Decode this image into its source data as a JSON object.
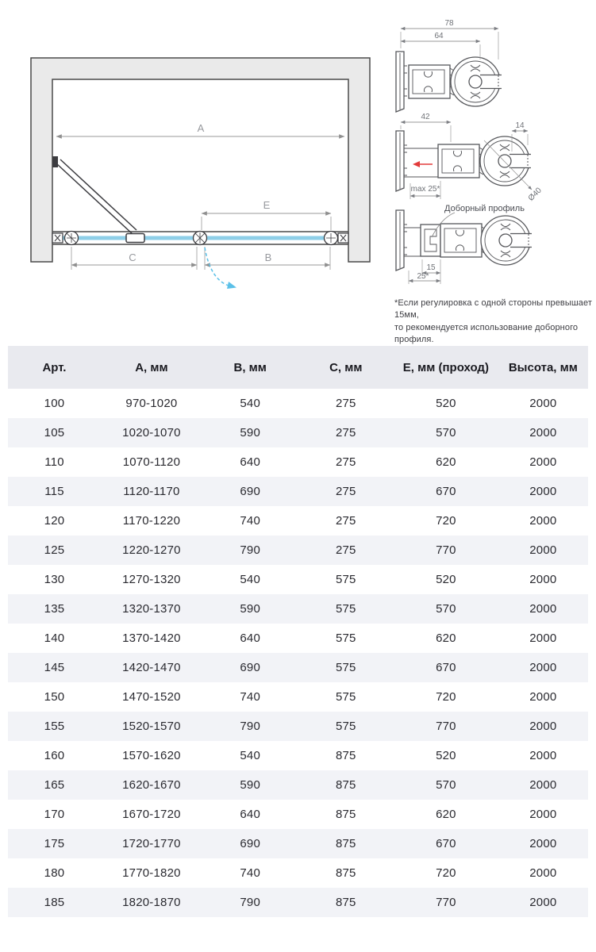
{
  "drawing": {
    "dim_a_label": "A",
    "dim_e_label": "E",
    "dim_c_label": "C",
    "dim_b_label": "B"
  },
  "profiles": {
    "top": {
      "dim_total": "78",
      "dim_inner": "64"
    },
    "middle": {
      "dim_depth": "42",
      "dim_slot": "14",
      "dim_diameter": "Ø40",
      "dim_adjust": "max 25*"
    },
    "bottom": {
      "label": "Доборный профиль",
      "dim_inner": "15",
      "dim_adjust": "25*"
    }
  },
  "footnote": "*Если регулировка с одной стороны превышает 15мм,\nто рекомендуется использование доборного профиля.",
  "table": {
    "headers": [
      "Арт.",
      "А, мм",
      "В, мм",
      "С, мм",
      "Е, мм (проход)",
      "Высота, мм"
    ],
    "rows": [
      [
        "100",
        "970-1020",
        "540",
        "275",
        "520",
        "2000"
      ],
      [
        "105",
        "1020-1070",
        "590",
        "275",
        "570",
        "2000"
      ],
      [
        "110",
        "1070-1120",
        "640",
        "275",
        "620",
        "2000"
      ],
      [
        "115",
        "1120-1170",
        "690",
        "275",
        "670",
        "2000"
      ],
      [
        "120",
        "1170-1220",
        "740",
        "275",
        "720",
        "2000"
      ],
      [
        "125",
        "1220-1270",
        "790",
        "275",
        "770",
        "2000"
      ],
      [
        "130",
        "1270-1320",
        "540",
        "575",
        "520",
        "2000"
      ],
      [
        "135",
        "1320-1370",
        "590",
        "575",
        "570",
        "2000"
      ],
      [
        "140",
        "1370-1420",
        "640",
        "575",
        "620",
        "2000"
      ],
      [
        "145",
        "1420-1470",
        "690",
        "575",
        "670",
        "2000"
      ],
      [
        "150",
        "1470-1520",
        "740",
        "575",
        "720",
        "2000"
      ],
      [
        "155",
        "1520-1570",
        "790",
        "575",
        "770",
        "2000"
      ],
      [
        "160",
        "1570-1620",
        "540",
        "875",
        "520",
        "2000"
      ],
      [
        "165",
        "1620-1670",
        "590",
        "875",
        "570",
        "2000"
      ],
      [
        "170",
        "1670-1720",
        "640",
        "875",
        "620",
        "2000"
      ],
      [
        "175",
        "1720-1770",
        "690",
        "875",
        "670",
        "2000"
      ],
      [
        "180",
        "1770-1820",
        "740",
        "875",
        "720",
        "2000"
      ],
      [
        "185",
        "1820-1870",
        "790",
        "875",
        "770",
        "2000"
      ]
    ]
  },
  "colors": {
    "glass_blue": "#8ecfe8",
    "swing_arrow_blue": "#5bc0e8",
    "adjust_arrow_red": "#e23b3b",
    "header_bg": "#e9eaef",
    "row_alt_bg": "#f2f3f7",
    "wall_fill": "#eaeaea",
    "outline_dark": "#4a4a4a",
    "dim_gray": "#9a9a9a"
  }
}
